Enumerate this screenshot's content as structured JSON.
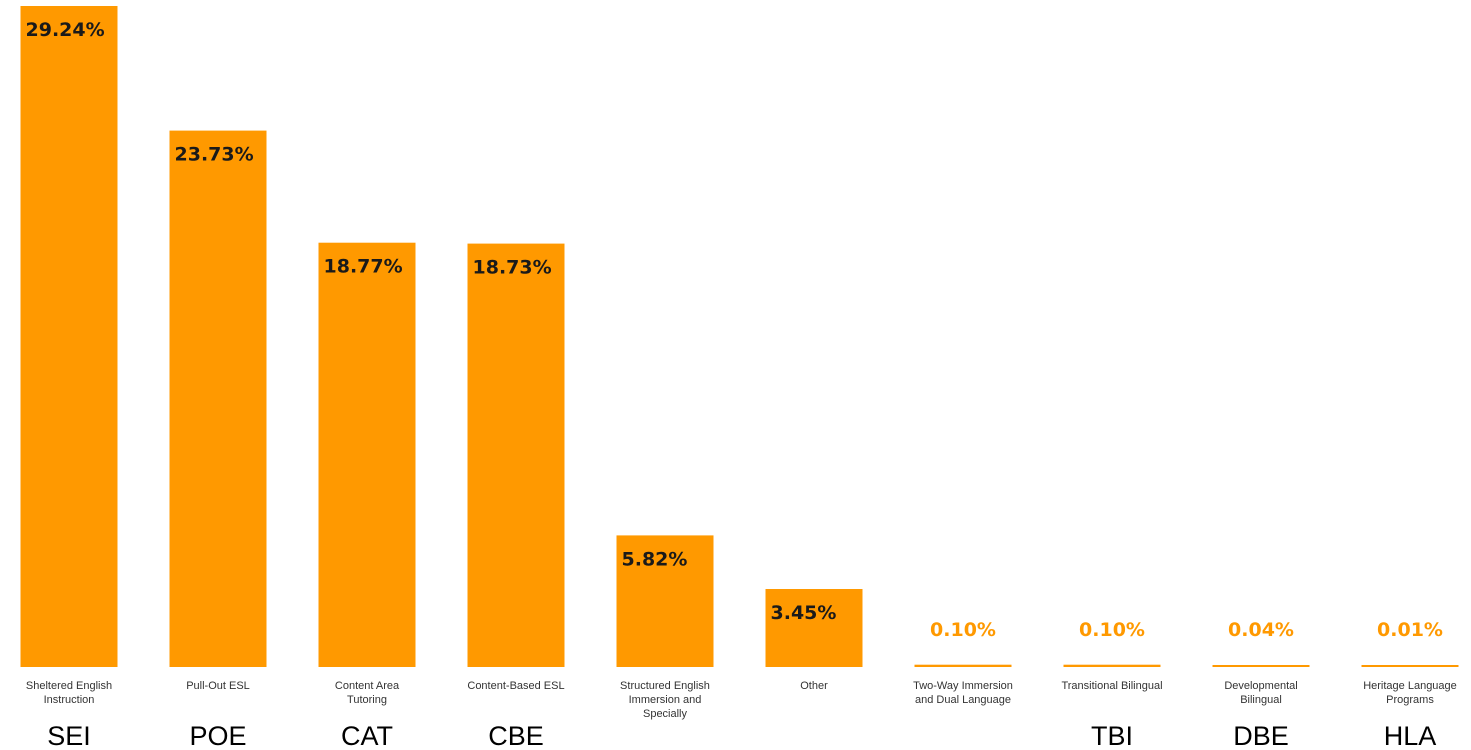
{
  "chart_data": {
    "type": "bar",
    "title": "",
    "xlabel": "",
    "ylabel": "",
    "ylim": [
      0,
      29.24
    ],
    "grid": false,
    "legend": "none",
    "categories": [
      [
        "Sheltered English",
        "Instruction"
      ],
      [
        "Pull-Out ESL"
      ],
      [
        "Content Area",
        "Tutoring"
      ],
      [
        "Content-Based ESL"
      ],
      [
        "Structured English",
        "Immersion and",
        "Specially"
      ],
      [
        "Other"
      ],
      [
        "Two-Way Immersion",
        "and Dual Language"
      ],
      [
        "Transitional Bilingual"
      ],
      [
        "Developmental",
        "Bilingual"
      ],
      [
        "Heritage Language",
        "Programs"
      ]
    ],
    "abbreviations": [
      "SEI",
      "POE",
      "CAT",
      "CBE",
      "",
      "",
      "",
      "TBI",
      "DBE",
      "HLA"
    ],
    "values": [
      29.24,
      23.73,
      18.77,
      18.73,
      5.82,
      3.45,
      0.1,
      0.1,
      0.04,
      0.01
    ],
    "data_labels": [
      "29.24%",
      "23.73%",
      "18.77%",
      "18.73%",
      "5.82%",
      "3.45%",
      "0.10%",
      "0.10%",
      "0.04%",
      "0.01%"
    ]
  },
  "colors": {
    "bar": "#FF9900",
    "label_dark": "#1a1a1a",
    "label_light": "#FF9900",
    "category_text": "#333333",
    "abbr_text": "#000000"
  }
}
